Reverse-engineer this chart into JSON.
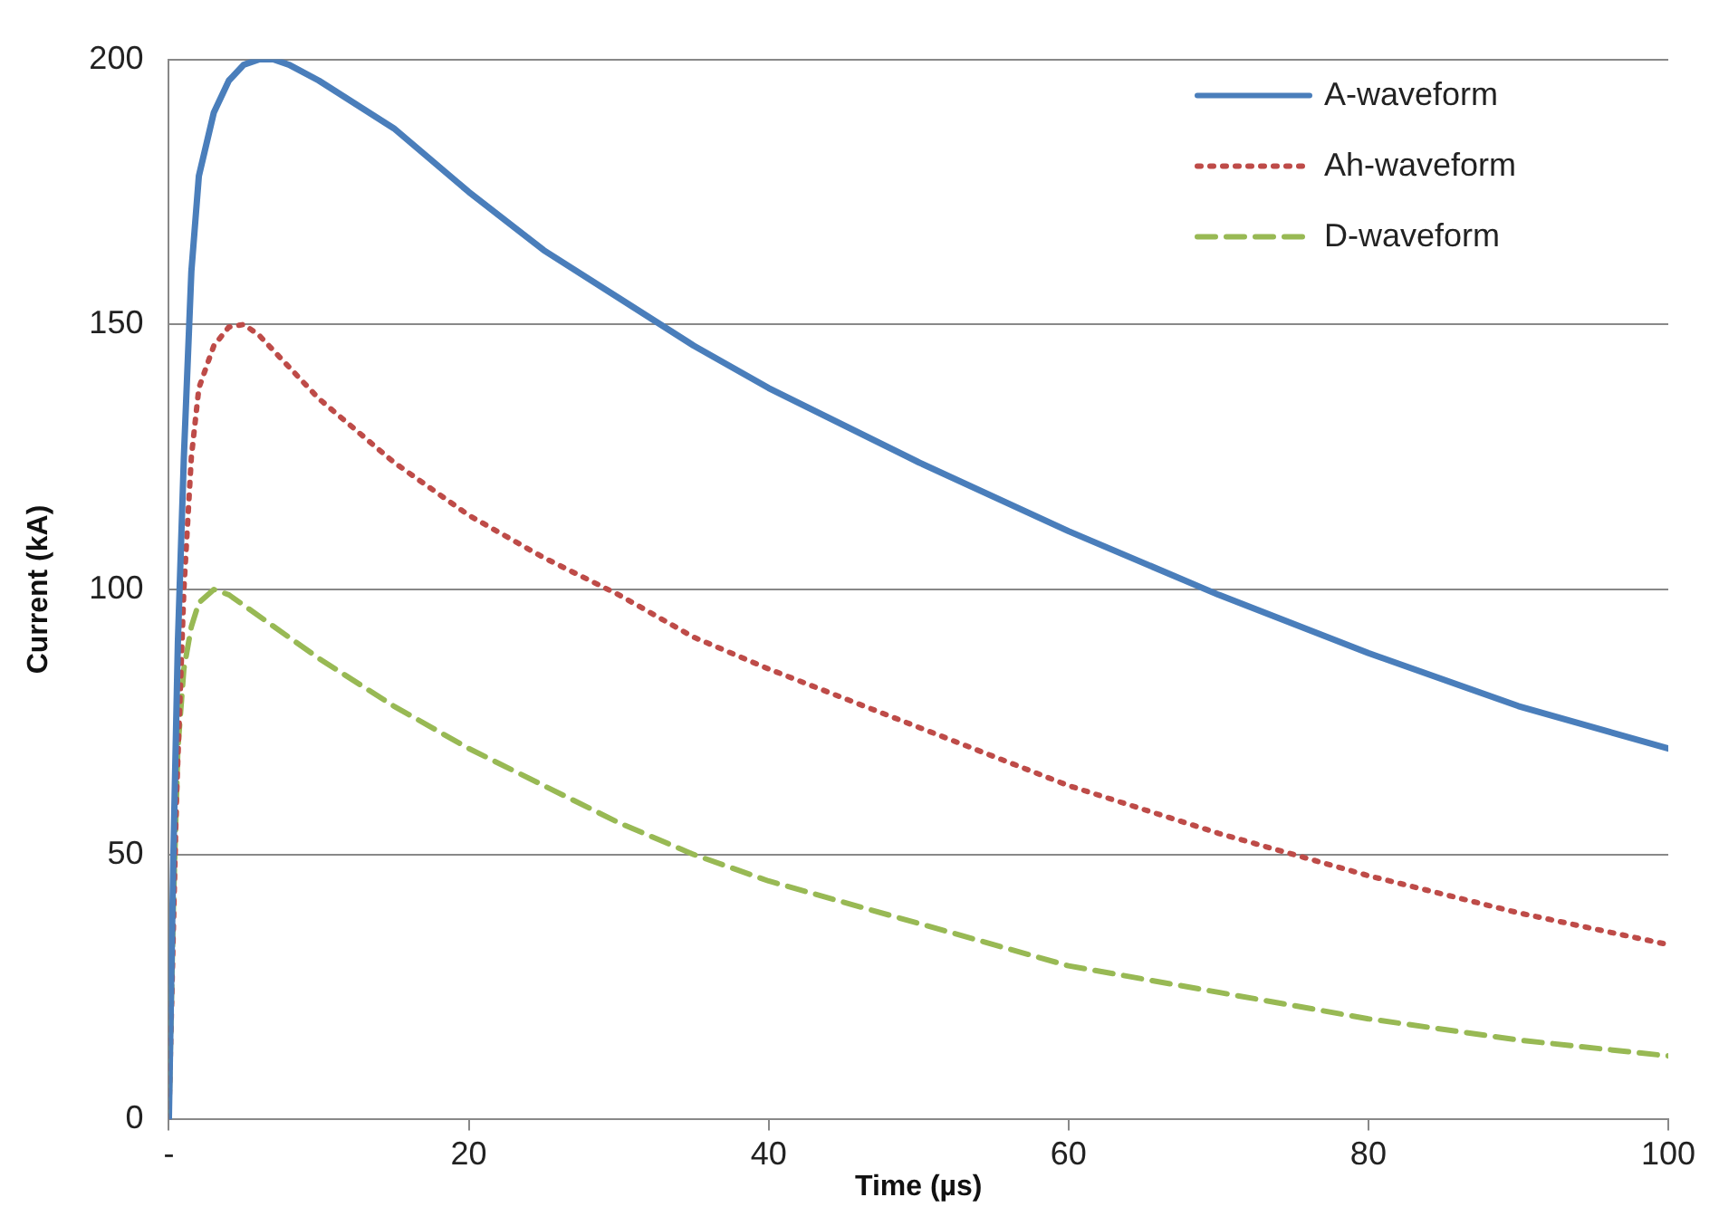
{
  "chart_data": {
    "type": "line",
    "xlabel": "Time (µs)",
    "ylabel": "Current (kA)",
    "xlim": [
      0,
      100
    ],
    "ylim": [
      0,
      200
    ],
    "xticks": [
      {
        "value": 0,
        "label": "-"
      },
      20,
      40,
      60,
      80,
      100
    ],
    "yticks": [
      0,
      50,
      100,
      150,
      200
    ],
    "grid": "y",
    "legend": "top right",
    "marker": "none",
    "series": [
      {
        "name": "A-waveform",
        "color": "#4a7ebb",
        "line_style": "solid",
        "x": [
          0,
          0.3,
          0.6,
          1,
          1.5,
          2,
          3,
          4,
          5,
          6,
          7,
          8,
          10,
          15,
          20,
          25,
          30,
          35,
          40,
          50,
          60,
          70,
          80,
          90,
          100
        ],
        "values": [
          0,
          50,
          90,
          125,
          160,
          178,
          190,
          196,
          199,
          200,
          200,
          199,
          196,
          187,
          175,
          164,
          155,
          146,
          138,
          124,
          111,
          99,
          88,
          78,
          70
        ]
      },
      {
        "name": "Ah-waveform",
        "color": "#be4b48",
        "line_style": "dotted",
        "x": [
          0,
          0.5,
          1,
          1.5,
          2,
          3,
          4,
          5,
          6,
          8,
          10,
          15,
          20,
          25,
          30,
          35,
          40,
          50,
          60,
          70,
          80,
          90,
          100
        ],
        "values": [
          0,
          60,
          100,
          125,
          138,
          146,
          149.5,
          150,
          148,
          142,
          136,
          124,
          114,
          106,
          99,
          91,
          85,
          74,
          63,
          54,
          46,
          39,
          33
        ]
      },
      {
        "name": "D-waveform",
        "color": "#98b954",
        "line_style": "dashed",
        "x": [
          0,
          0.3,
          0.6,
          1,
          1.5,
          2,
          3,
          4,
          5,
          8,
          10,
          15,
          20,
          25,
          30,
          35,
          40,
          50,
          60,
          70,
          80,
          90,
          100
        ],
        "values": [
          0,
          40,
          70,
          85,
          93,
          97.5,
          100,
          99,
          97,
          91,
          87,
          78,
          70,
          63,
          56,
          50,
          45,
          37,
          29,
          24,
          19,
          15,
          12
        ]
      }
    ]
  }
}
